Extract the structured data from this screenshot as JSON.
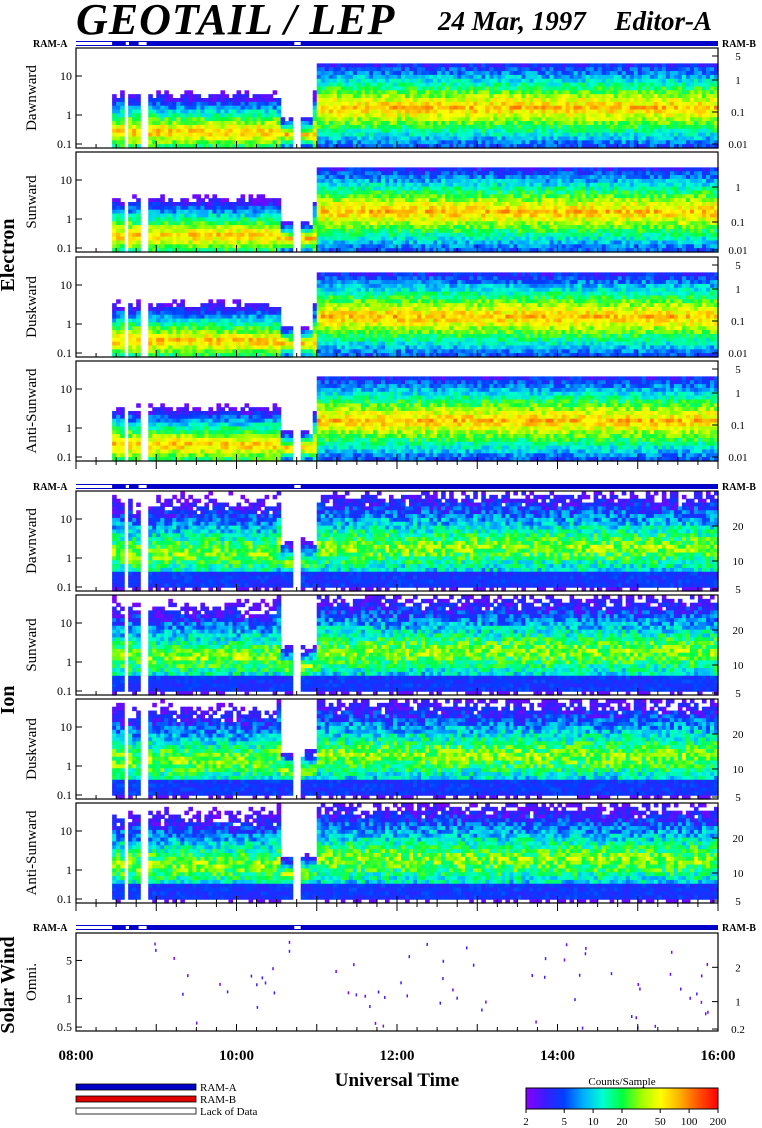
{
  "header": {
    "title": "GEOTAIL / LEP",
    "date": "24 Mar, 1997",
    "editor": "Editor-A"
  },
  "colors": {
    "ram_a": "#0000c8",
    "ram_b": "#e00000",
    "lack_of_data": "#ffffff",
    "spectrogram_scale": [
      "#8b00ff",
      "#3a1cff",
      "#0040ff",
      "#00b0ff",
      "#00ffd0",
      "#00ff40",
      "#a0ff00",
      "#ffff00",
      "#ffb000",
      "#ff5000",
      "#ff0000"
    ]
  },
  "chart_data": {
    "type": "heatmap",
    "xlabel": "Universal Time",
    "x_ticks": [
      "08:00",
      "10:00",
      "12:00",
      "14:00",
      "16:00"
    ],
    "x_range_hours": [
      8,
      16
    ],
    "ram_labels": {
      "left": "RAM-A",
      "right": "RAM-B"
    },
    "groups": [
      {
        "name": "Electron",
        "left_ticks": [
          "10",
          "1",
          "0.1"
        ],
        "panels": [
          {
            "name": "Dawnward",
            "right_ticks": [
              "5",
              "1",
              "0.1",
              "0.01"
            ]
          },
          {
            "name": "Sunward",
            "right_ticks": [
              "1",
              "0.1",
              "0.01"
            ]
          },
          {
            "name": "Duskward",
            "right_ticks": [
              "5",
              "1",
              "0.1",
              "0.01"
            ]
          },
          {
            "name": "Anti-Sunward",
            "right_ticks": [
              "5",
              "1",
              "0.1",
              "0.01"
            ]
          }
        ]
      },
      {
        "name": "Ion",
        "left_ticks": [
          "10",
          "1",
          "0.1"
        ],
        "panels": [
          {
            "name": "Dawnward",
            "right_ticks": [
              "20",
              "10",
              "5"
            ]
          },
          {
            "name": "Sunward",
            "right_ticks": [
              "20",
              "10",
              "5"
            ]
          },
          {
            "name": "Duskward",
            "right_ticks": [
              "20",
              "10",
              "5"
            ]
          },
          {
            "name": "Anti-Sunward",
            "right_ticks": [
              "20",
              "10",
              "5"
            ]
          }
        ]
      },
      {
        "name": "Solar Wind",
        "left_ticks": [
          "5",
          "1",
          "0.5"
        ],
        "panels": [
          {
            "name": "Omni.",
            "right_ticks": [
              "2",
              "1",
              "0.2"
            ]
          }
        ]
      }
    ],
    "legend": {
      "items": [
        "RAM-A",
        "RAM-B",
        "Lack of Data"
      ]
    },
    "colorbar": {
      "title": "Counts/Sample",
      "ticks": [
        "2",
        "5",
        "10",
        "20",
        "50",
        "100",
        "200"
      ]
    }
  }
}
